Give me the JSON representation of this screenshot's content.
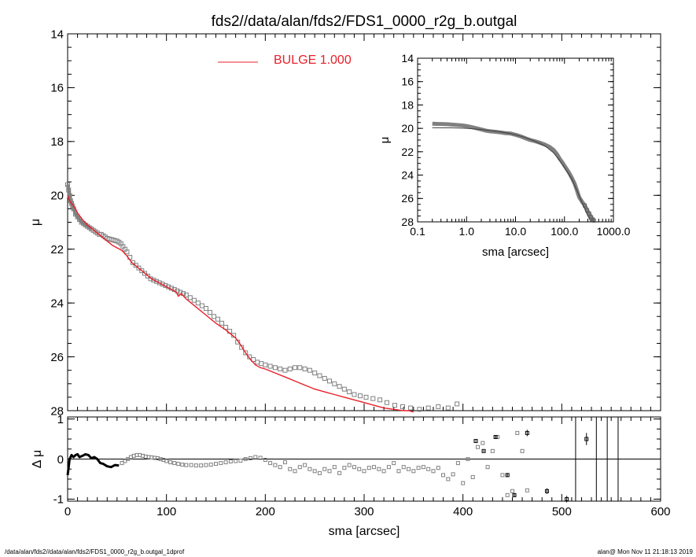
{
  "colors": {
    "data": "#808080",
    "model": "#e8202a",
    "axis": "#000000",
    "background": "#ffffff"
  },
  "chart_data": [
    {
      "type": "scatter",
      "id": "main",
      "title": "fds2//data/alan/fds2/FDS1_0000_r2g_b.outgal",
      "xlabel": "",
      "ylabel": "μ",
      "xlim": [
        0,
        600
      ],
      "ylim": [
        28,
        14
      ],
      "y_inverted": true,
      "x_ticks": [
        0,
        100,
        200,
        300,
        400,
        500,
        600
      ],
      "y_ticks": [
        14,
        16,
        18,
        20,
        22,
        24,
        26,
        28
      ],
      "legend": {
        "position": "top-center",
        "entries": [
          {
            "label": "BULGE  1.000",
            "color": "#e8202a"
          }
        ]
      },
      "series": [
        {
          "name": "data",
          "marker": "open-square",
          "color": "#808080",
          "x": [
            0,
            1,
            2,
            3,
            4,
            5,
            6,
            8,
            10,
            12,
            14,
            16,
            18,
            20,
            22,
            24,
            26,
            28,
            30,
            32,
            34,
            36,
            38,
            40,
            42,
            44,
            46,
            48,
            50,
            52,
            54,
            56,
            58,
            60,
            63,
            66,
            69,
            72,
            75,
            78,
            81,
            84,
            87,
            90,
            93,
            96,
            99,
            102,
            105,
            108,
            111,
            114,
            117,
            120,
            124,
            128,
            132,
            136,
            140,
            144,
            148,
            152,
            156,
            160,
            164,
            168,
            172,
            176,
            180,
            184,
            188,
            192,
            196,
            200,
            205,
            210,
            215,
            220,
            225,
            230,
            235,
            240,
            245,
            250,
            255,
            260,
            265,
            270,
            275,
            280,
            285,
            290,
            296,
            302,
            309,
            316,
            323,
            331,
            339,
            347,
            356,
            365,
            375,
            385,
            394
          ],
          "y": [
            19.6,
            19.8,
            20.0,
            20.2,
            20.3,
            20.4,
            20.5,
            20.7,
            20.8,
            20.9,
            21.0,
            21.05,
            21.1,
            21.15,
            21.2,
            21.25,
            21.3,
            21.35,
            21.4,
            21.45,
            21.45,
            21.5,
            21.55,
            21.6,
            21.62,
            21.64,
            21.66,
            21.68,
            21.7,
            21.74,
            21.8,
            21.9,
            22.0,
            22.1,
            22.3,
            22.5,
            22.6,
            22.7,
            22.8,
            22.9,
            23.0,
            23.1,
            23.15,
            23.2,
            23.25,
            23.3,
            23.35,
            23.4,
            23.45,
            23.5,
            23.55,
            23.6,
            23.65,
            23.7,
            23.8,
            23.9,
            24.0,
            24.1,
            24.2,
            24.35,
            24.5,
            24.6,
            24.75,
            24.9,
            25.05,
            25.2,
            25.45,
            25.65,
            25.85,
            26.0,
            26.1,
            26.2,
            26.25,
            26.3,
            26.35,
            26.4,
            26.45,
            26.5,
            26.45,
            26.4,
            26.4,
            26.45,
            26.5,
            26.6,
            26.7,
            26.8,
            26.9,
            27.0,
            27.1,
            27.2,
            27.3,
            27.4,
            27.45,
            27.5,
            27.55,
            27.6,
            27.7,
            27.8,
            27.85,
            27.9,
            27.95,
            27.9,
            27.85,
            27.9,
            27.75
          ]
        },
        {
          "name": "BULGE  1.000",
          "style": "line",
          "color": "#e8202a",
          "x": [
            0,
            1,
            2,
            4,
            6,
            8,
            10,
            15,
            20,
            25,
            30,
            35,
            40,
            45,
            50,
            55,
            60,
            65,
            70,
            75,
            80,
            85,
            90,
            95,
            100,
            105,
            108,
            110,
            112,
            115,
            120,
            130,
            140,
            150,
            160,
            170,
            175,
            180,
            185,
            190,
            195,
            200,
            210,
            220,
            230,
            240,
            250,
            260,
            270,
            280,
            290,
            300,
            310,
            320,
            330,
            340,
            345,
            350
          ],
          "y": [
            20.0,
            20.1,
            20.2,
            20.3,
            20.4,
            20.5,
            20.65,
            20.9,
            21.1,
            21.25,
            21.4,
            21.55,
            21.7,
            21.85,
            21.95,
            22.05,
            22.25,
            22.5,
            22.65,
            22.8,
            22.95,
            23.1,
            23.2,
            23.3,
            23.4,
            23.5,
            23.55,
            23.6,
            23.75,
            23.65,
            23.85,
            24.15,
            24.45,
            24.75,
            25.0,
            25.3,
            25.55,
            25.85,
            26.1,
            26.3,
            26.4,
            26.45,
            26.6,
            26.75,
            26.9,
            27.05,
            27.2,
            27.3,
            27.4,
            27.5,
            27.6,
            27.7,
            27.8,
            27.9,
            27.95,
            28.0,
            28.0,
            28.05
          ]
        }
      ]
    },
    {
      "type": "scatter",
      "id": "inset",
      "title": "",
      "xlabel": "sma [arcsec]",
      "ylabel": "μ",
      "x_scale": "log",
      "xlim": [
        0.1,
        1000
      ],
      "ylim": [
        28,
        14
      ],
      "y_inverted": true,
      "x_ticks": [
        0.1,
        1.0,
        10.0,
        100.0,
        1000.0
      ],
      "x_tick_labels": [
        "0.1",
        "1.0",
        "10.0",
        "100.0",
        "1000.0"
      ],
      "y_ticks": [
        14,
        16,
        18,
        20,
        22,
        24,
        26,
        28
      ],
      "series": [
        {
          "name": "data",
          "marker": "open-square",
          "color": "#808080",
          "x": [
            0.2,
            0.25,
            0.3,
            0.4,
            0.5,
            0.6,
            0.8,
            1.0,
            1.3,
            1.6,
            2.0,
            2.5,
            3.0,
            4.0,
            5.0,
            6.0,
            8.0,
            10.0,
            13.0,
            16.0,
            20.0,
            25.0,
            30.0,
            40.0,
            50.0,
            60.0,
            70.0,
            80.0,
            90.0,
            100.0,
            120.0,
            140.0,
            160.0,
            180.0,
            200.0,
            230.0,
            260.0,
            290.0,
            320.0,
            350.0,
            380.0,
            400.0
          ],
          "y": [
            19.6,
            19.62,
            19.63,
            19.65,
            19.68,
            19.7,
            19.75,
            19.8,
            19.9,
            20.0,
            20.1,
            20.2,
            20.25,
            20.3,
            20.35,
            20.4,
            20.45,
            20.55,
            20.7,
            20.85,
            21.0,
            21.1,
            21.2,
            21.4,
            21.6,
            21.85,
            22.2,
            22.6,
            22.9,
            23.2,
            23.7,
            24.2,
            24.7,
            25.3,
            25.9,
            26.3,
            26.6,
            27.0,
            27.3,
            27.6,
            27.8,
            27.9
          ]
        },
        {
          "name": "model",
          "style": "line",
          "color": "#404040",
          "x": [
            0.2,
            0.5,
            1.0,
            2.0,
            4.0,
            8.0,
            15.0,
            25.0,
            40.0,
            60.0,
            80.0,
            100.0,
            140.0,
            180.0,
            220.0,
            260.0,
            300.0,
            350.0
          ],
          "y": [
            19.95,
            19.96,
            20.0,
            20.1,
            20.25,
            20.45,
            20.75,
            21.1,
            21.5,
            22.1,
            22.75,
            23.35,
            24.3,
            25.3,
            26.2,
            26.9,
            27.5,
            28.0
          ]
        }
      ]
    },
    {
      "type": "scatter",
      "id": "residuals",
      "title": "",
      "xlabel": "sma [arcsec]",
      "ylabel": "Δ μ",
      "xlim": [
        0,
        600
      ],
      "ylim": [
        -1.05,
        1.05
      ],
      "x_ticks": [
        0,
        100,
        200,
        300,
        400,
        500,
        600
      ],
      "y_ticks": [
        -1,
        0,
        1
      ],
      "reference_line_y": 0,
      "series": [
        {
          "name": "dense",
          "style": "thick-line",
          "color": "#000000",
          "x": [
            0,
            1,
            2,
            3,
            4,
            6,
            8,
            10,
            12,
            15,
            18,
            21,
            24,
            27,
            30,
            33,
            36,
            40,
            44,
            48,
            52
          ],
          "y": [
            -0.4,
            -0.2,
            0.0,
            0.05,
            0.1,
            0.05,
            0.1,
            0.12,
            0.05,
            0.08,
            0.12,
            0.1,
            0.02,
            0.05,
            0.0,
            -0.1,
            -0.12,
            -0.18,
            -0.2,
            -0.15,
            -0.16
          ]
        },
        {
          "name": "data",
          "marker": "open-square",
          "color": "#808080",
          "x": [
            55,
            58,
            61,
            64,
            67,
            70,
            73,
            76,
            79,
            82,
            85,
            88,
            91,
            94,
            97,
            100,
            104,
            108,
            112,
            116,
            120,
            125,
            130,
            135,
            140,
            145,
            150,
            155,
            160,
            165,
            170,
            175,
            180,
            185,
            190,
            195,
            200,
            205,
            210,
            215,
            220,
            225,
            230,
            235,
            240,
            245,
            250,
            255,
            260,
            265,
            270,
            275,
            280,
            285,
            290,
            295,
            300,
            305,
            310,
            315,
            320,
            325,
            330,
            335,
            340,
            345,
            350,
            355,
            360,
            365,
            370,
            375,
            380,
            385,
            390,
            395,
            400,
            405,
            410,
            415,
            420,
            425,
            430,
            435,
            440,
            445,
            450,
            455,
            460,
            465
          ],
          "y": [
            -0.1,
            -0.05,
            0.0,
            0.05,
            0.08,
            0.1,
            0.1,
            0.08,
            0.06,
            0.05,
            0.04,
            0.03,
            0.02,
            0.0,
            -0.02,
            -0.05,
            -0.08,
            -0.1,
            -0.12,
            -0.14,
            -0.15,
            -0.15,
            -0.16,
            -0.16,
            -0.15,
            -0.14,
            -0.12,
            -0.1,
            -0.08,
            -0.06,
            -0.05,
            -0.04,
            0.0,
            0.02,
            0.05,
            0.03,
            -0.02,
            -0.1,
            -0.15,
            -0.2,
            -0.08,
            -0.25,
            -0.3,
            -0.2,
            -0.15,
            -0.25,
            -0.3,
            -0.35,
            -0.25,
            -0.3,
            -0.2,
            -0.35,
            -0.22,
            -0.15,
            -0.2,
            -0.25,
            -0.3,
            -0.22,
            -0.2,
            -0.25,
            -0.3,
            -0.2,
            -0.1,
            -0.3,
            -0.2,
            -0.25,
            -0.3,
            -0.22,
            -0.2,
            -0.25,
            -0.3,
            -0.22,
            -0.4,
            -0.5,
            -0.38,
            -0.1,
            -0.6,
            0.0,
            -0.45,
            0.3,
            0.4,
            -0.2,
            0.2,
            0.55,
            -0.4,
            -0.9,
            -0.8,
            0.65,
            0.2,
            -0.78
          ]
        },
        {
          "name": "errorbar-points",
          "marker": "open-square-errorbar",
          "color": "#000000",
          "x": [
            413,
            421,
            433,
            445,
            452,
            465,
            485,
            505,
            525
          ],
          "y": [
            0.45,
            0.2,
            0.55,
            -0.4,
            -0.9,
            0.65,
            -0.8,
            -1.0,
            0.5
          ],
          "err": [
            0.02,
            0.02,
            0.04,
            0.05,
            0.05,
            0.08,
            0.07,
            0.08,
            0.15
          ]
        },
        {
          "name": "vertical-lines",
          "style": "vline",
          "color": "#000000",
          "x": [
            514,
            535,
            546,
            557
          ]
        }
      ]
    }
  ],
  "footer": {
    "left": "/data/alan/fds2//data/alan/fds2/FDS1_0000_r2g_b.outgal_1dprof",
    "right": "alan@  Mon Nov 11 21:18:13 2019"
  }
}
